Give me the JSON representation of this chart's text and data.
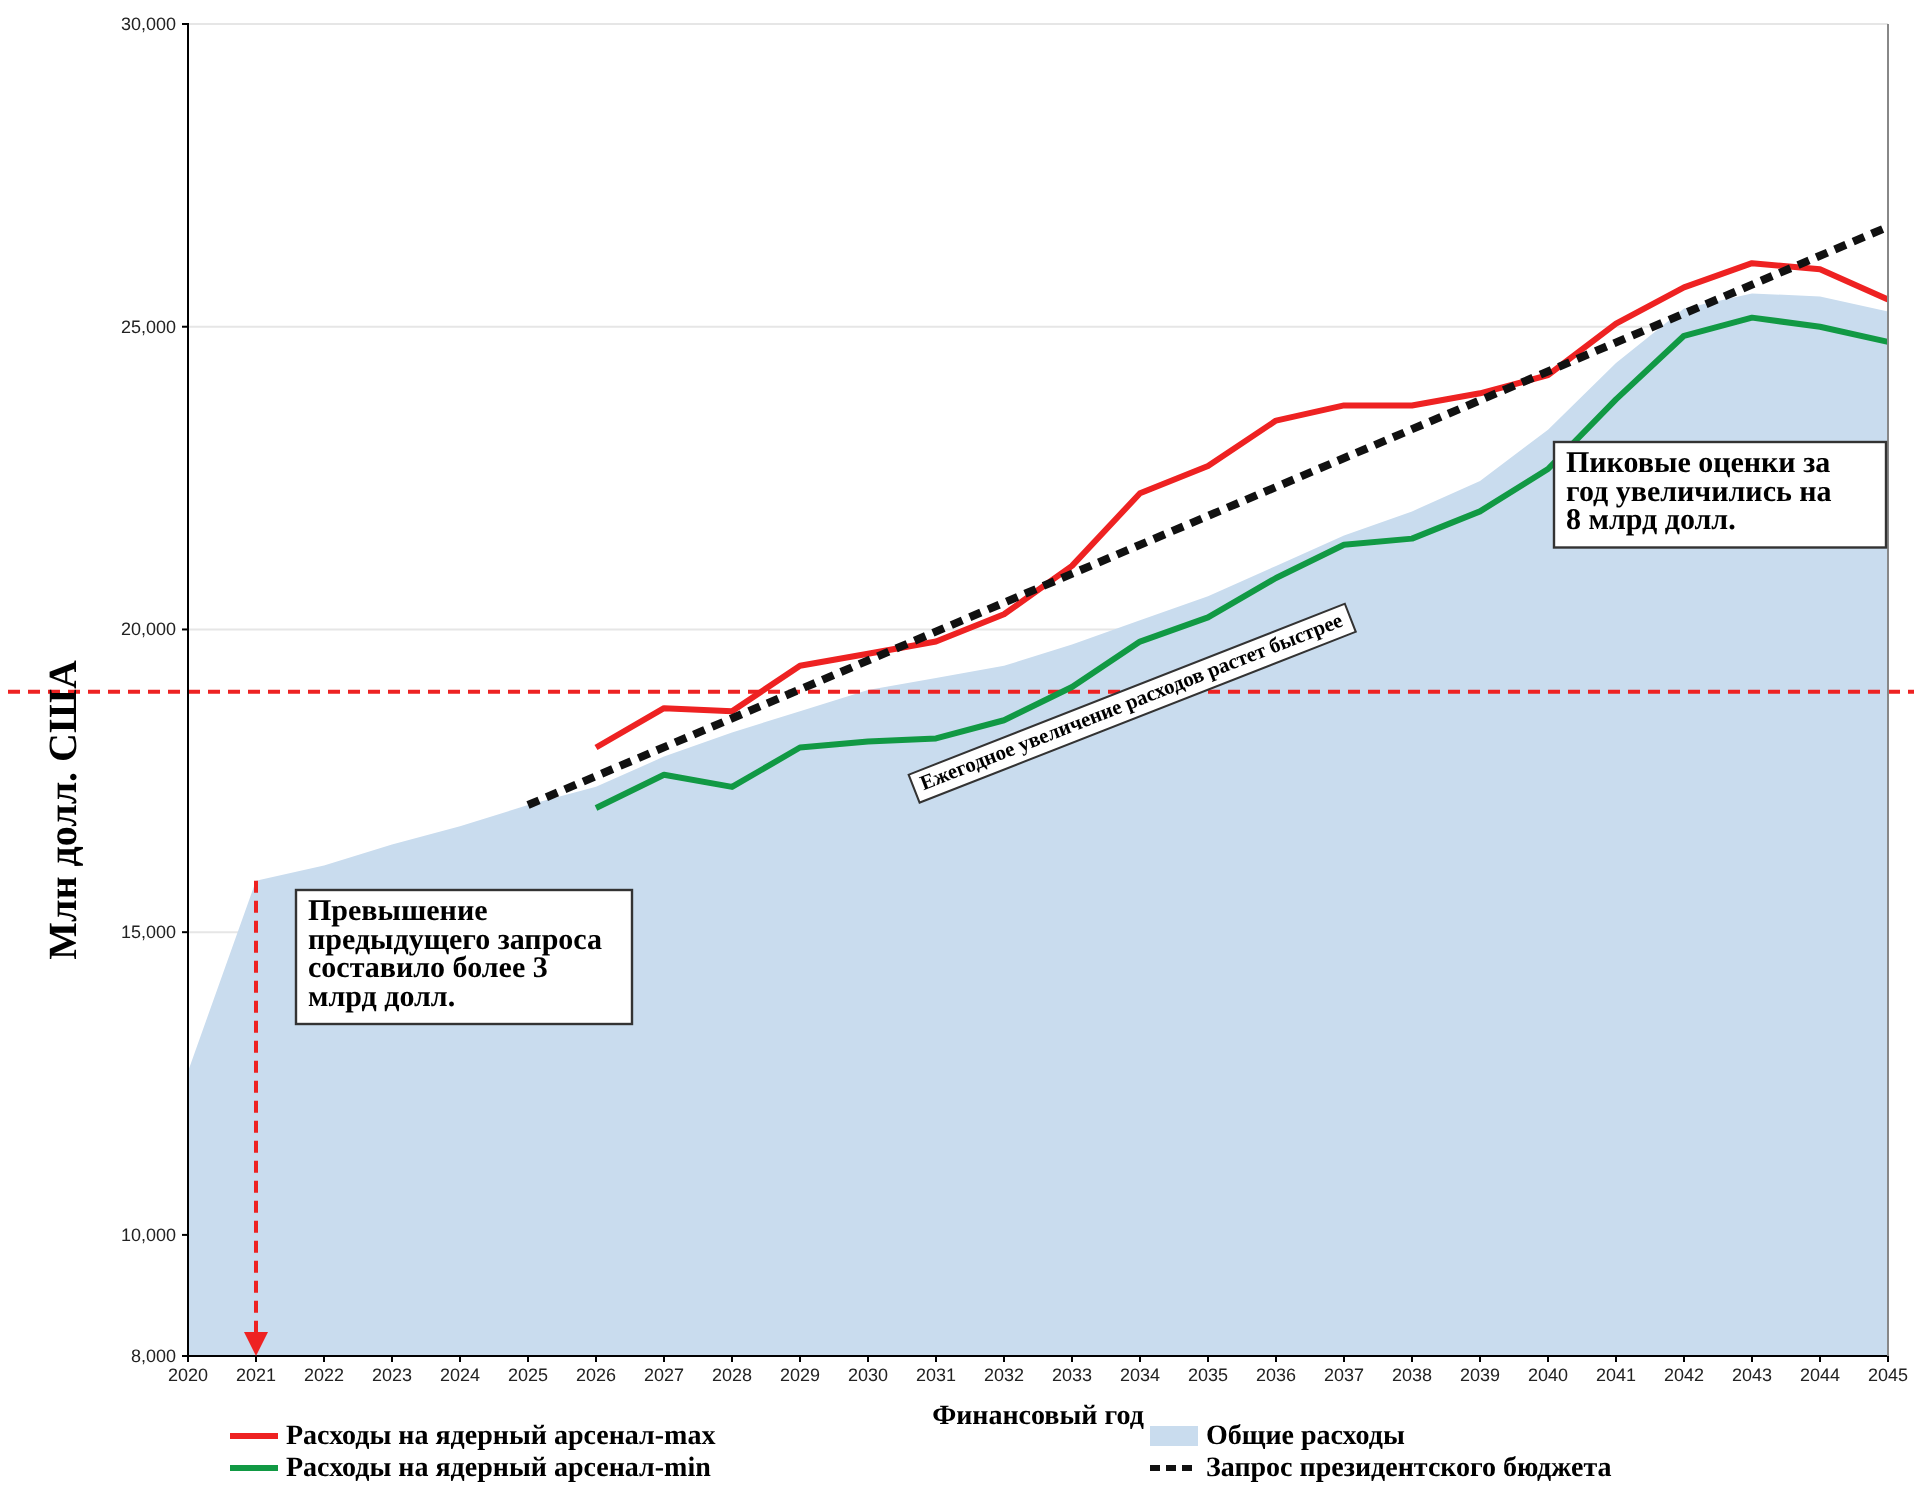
{
  "chart_data": {
    "type": "line",
    "xlabel": "Финансовый год",
    "ylabel": "Млн долл. США",
    "x": [
      2020,
      2021,
      2022,
      2023,
      2024,
      2025,
      2026,
      2027,
      2028,
      2029,
      2030,
      2031,
      2032,
      2033,
      2034,
      2035,
      2036,
      2037,
      2038,
      2039,
      2040,
      2041,
      2042,
      2043,
      2044,
      2045
    ],
    "xlim": [
      2020,
      2045
    ],
    "xticks": [
      2020,
      2021,
      2022,
      2023,
      2024,
      2025,
      2026,
      2027,
      2028,
      2029,
      2030,
      2031,
      2032,
      2033,
      2034,
      2035,
      2036,
      2037,
      2038,
      2039,
      2040,
      2041,
      2042,
      2043,
      2044,
      2045
    ],
    "ylim": [
      8000,
      30000
    ],
    "yticks": [
      {
        "value": 8000,
        "label": "8,000"
      },
      {
        "value": 10000,
        "label": "10,000"
      },
      {
        "value": 15000,
        "label": "15,000"
      },
      {
        "value": 20000,
        "label": "20,000"
      },
      {
        "value": 25000,
        "label": "25,000"
      },
      {
        "value": 30000,
        "label": "30,000"
      }
    ],
    "grid": "y",
    "legend": "bottom",
    "series": [
      {
        "name": "Общие расходы",
        "type": "area",
        "color": "#c9dcee",
        "values": [
          12700,
          15850,
          16100,
          16450,
          16750,
          17100,
          17400,
          17900,
          18300,
          18650,
          19000,
          19200,
          19400,
          19750,
          20150,
          20550,
          21050,
          21550,
          21950,
          22450,
          23300,
          24400,
          25300,
          25550,
          25500,
          25250
        ]
      },
      {
        "name": "Расходы на ядерный арсенал-max",
        "color": "#ee2222",
        "values": [
          null,
          null,
          null,
          null,
          null,
          null,
          18050,
          18700,
          18650,
          19400,
          19600,
          19800,
          20250,
          21050,
          22250,
          22700,
          23450,
          23700,
          23700,
          23900,
          24200,
          25050,
          25650,
          26050,
          25950,
          25450
        ]
      },
      {
        "name": "Расходы на ядерный арсенал-min",
        "color": "#119944",
        "values": [
          null,
          null,
          null,
          null,
          null,
          null,
          17050,
          17600,
          17400,
          18050,
          18150,
          18200,
          18500,
          19050,
          19800,
          20200,
          20850,
          21400,
          21500,
          21950,
          22650,
          23800,
          24850,
          25150,
          25000,
          24750
        ]
      },
      {
        "name": "Запрос президентского бюджета",
        "color": "#111111",
        "line_style": "dashed",
        "x": [
          2025,
          2045
        ],
        "values": [
          17100,
          26650
        ]
      }
    ],
    "ref_lines": [
      {
        "axis": "y",
        "value": 18970,
        "color": "#ee2222",
        "line_style": "dashed"
      }
    ],
    "annotations": [
      {
        "text": "Превышение предыдущего запроса составило более 3 млрд  долл.",
        "x": 2021,
        "y": 15850
      },
      {
        "text": "Ежегодное увеличение расходов растет быстрее"
      },
      "Пиковые оценки за год увеличились на 8 млрд  долл."
    ]
  }
}
